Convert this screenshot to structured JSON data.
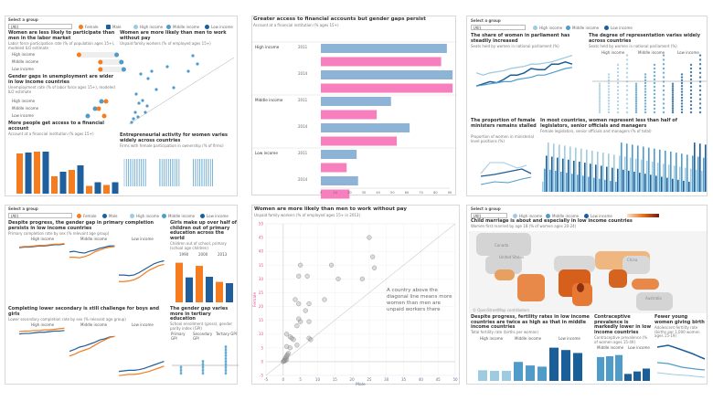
{
  "common": {
    "select_label": "Select a group",
    "select_value": "(All)"
  },
  "legend": {
    "female": "Female",
    "male": "Male",
    "high": "High income",
    "middle": "Middle income",
    "low": "Low income"
  },
  "colors": {
    "female": "#f57c1f",
    "male": "#1f5f9e",
    "high": "#9fcbe2",
    "middle": "#4f9ccb",
    "low": "#1b5f9a",
    "blue_bar": "#8db4d6",
    "pink_bar": "#f77fbd"
  },
  "panel1": {
    "t1": "Women are less likely to participate than men in the labor market",
    "s1": "Labor force participation rate (% of population ages 15+), modeled ILO estimate",
    "rows": [
      "High income",
      "Middle income",
      "Low income"
    ],
    "t2": "Gender gaps in unemployment are wider in low income countries",
    "s2": "Unemployment rate (% of labor force ages 15+), modeled ILO estimate",
    "t3": "More people get access to a financial account",
    "s3": "Account at a financial institution (% ages 15+)",
    "t4": "Women are more likely than men to work without pay",
    "s4": "Unpaid family workers (% of employed ages 15+)",
    "t5": "Entrepreneurial activity for women varies widely across countries",
    "s5": "Firms with female participation in ownership (% of firms)",
    "year": "2014",
    "account_bars": [
      88,
      90,
      92,
      92,
      38,
      48,
      52,
      62,
      17,
      25,
      19,
      25
    ]
  },
  "panel2": {
    "title": "Greater access to financial accounts but gender gaps persist",
    "subtitle": "Account at a financial institution (% ages 15+)"
  },
  "panel3": {
    "t1": "The share of women in parliament has steadily increased",
    "s1": "Seats held by women in national parliament (%)",
    "t2": "The degree of representation varies widely across countries",
    "s2": "Seats held by women in national parliament (%)",
    "t3": "The proportion of female ministers remains stalled",
    "s3": "Proportion of women in ministerial level positions (%)",
    "t4": "In most countries, women represent less than half of legislators, senior officials and managers",
    "s4": "Female legislators, senior officials and managers (% of total)",
    "groups": [
      "High income",
      "Middle income",
      "Low income"
    ]
  },
  "panel4": {
    "t1": "Despite progress, the gender gap in primary completion persists in low income countries",
    "s1": "Primary completion rate by sex (% relevant age group)",
    "t2": "Completing lower secondary is still challenge for boys and girls",
    "s2": "Lower secondary completion rate by sex (% relevant age group)",
    "t3": "Girls make up over half of children out of primary education across the world",
    "s3": "Children out of school, primary (school age children)",
    "t4": "The gender gap varies more in tertiary education",
    "s4": "School enrollment (gross), gender parity index (GPI)",
    "groups": [
      "High income",
      "Middle income",
      "Low income"
    ],
    "years": [
      "1990",
      "2000",
      "2013"
    ],
    "gpi": [
      "Primary GPI",
      "Secondary GPI",
      "Tertiary GPI"
    ],
    "bars": [
      62,
      39,
      57,
      40,
      32,
      30
    ]
  },
  "panel5": {
    "title": "Women are more likely than men to work without pay",
    "subtitle": "Unpaid family workers (% of employed ages 15+ in 2013)",
    "note": "A country above the diagonal line means more women than men are unpaid workers there"
  },
  "panel6": {
    "t1": "Child marriage is about and especially in low income countries",
    "s1": "Women first married by age 18 (% of women ages 20-24)",
    "t2": "Despite progress, fertility rates in low income countries are twice as high as that in middle income countries",
    "s2": "Total fertility rate (births per woman)",
    "t3": "Contraceptive prevalence is markedly lower in low income countries",
    "s3": "Contraceptive prevalence (% of women ages 15-49)",
    "t4": "Fewer young women giving birth",
    "s4": "Adolescent fertility rate (births per 1,000 women ages 15-19)",
    "groups": [
      "High income",
      "Middle income",
      "Low income"
    ],
    "map_labels": [
      "Canada",
      "United States",
      "China",
      "Australia"
    ],
    "credit": "© OpenStreetMap contributors",
    "fertility": [
      1.8,
      1.7,
      1.7,
      3.2,
      2.6,
      2.4,
      5.6,
      5.2,
      4.7
    ],
    "contraception": [
      58,
      60,
      63,
      17,
      23,
      30
    ]
  },
  "chart_data": [
    {
      "type": "bar",
      "orientation": "horizontal",
      "title": "Greater access to financial accounts but gender gaps persist",
      "subtitle": "Account at a financial institution (% ages 15+)",
      "categories": [
        "High income 2011",
        "High income 2014",
        "Middle income 2011",
        "Middle income 2014",
        "Low income 2011",
        "Low income 2014"
      ],
      "group_labels": [
        "High income",
        "Middle income",
        "Low income"
      ],
      "year_labels": [
        "2011",
        "2014",
        "2011",
        "2014",
        "2011",
        "2014"
      ],
      "series": [
        {
          "color": "#8db4d6",
          "values": [
            88,
            92,
            49,
            62,
            25,
            26
          ]
        },
        {
          "color": "#f77fbd",
          "values": [
            84,
            92,
            39,
            53,
            18,
            20
          ]
        }
      ],
      "xlim": [
        0,
        90
      ],
      "xticks": [
        "0",
        "10",
        "20",
        "30",
        "40",
        "50",
        "60",
        "70",
        "80",
        "90"
      ]
    },
    {
      "type": "scatter",
      "title": "Women are more likely than men to work without pay",
      "subtitle": "Unpaid family workers (% of employed ages 15+ in 2013)",
      "xlabel": "Male",
      "ylabel": "Female",
      "xlim": [
        -5,
        50
      ],
      "ylim": [
        -5,
        50
      ],
      "xticks": [
        "-5",
        "0",
        "5",
        "10",
        "15",
        "20",
        "25",
        "30",
        "35",
        "40",
        "45",
        "50"
      ],
      "yticks": [
        "-5",
        "0",
        "5",
        "10",
        "15",
        "20",
        "25",
        "30",
        "35",
        "40",
        "45",
        "50"
      ],
      "points": [
        [
          25,
          45
        ],
        [
          26,
          38
        ],
        [
          26.5,
          34
        ],
        [
          14,
          35
        ],
        [
          16,
          30
        ],
        [
          23,
          30
        ],
        [
          5,
          35
        ],
        [
          4.5,
          31
        ],
        [
          7,
          31
        ],
        [
          3.5,
          22.5
        ],
        [
          12,
          22.5
        ],
        [
          4.5,
          21
        ],
        [
          7.5,
          21
        ],
        [
          6.5,
          18.5
        ],
        [
          4.5,
          15.5
        ],
        [
          5,
          14.5
        ],
        [
          7.5,
          14.5
        ],
        [
          4,
          13
        ],
        [
          1,
          10
        ],
        [
          2,
          9
        ],
        [
          2.5,
          8.5
        ],
        [
          3,
          8
        ],
        [
          7.5,
          8.5
        ],
        [
          8,
          8
        ],
        [
          4,
          6
        ],
        [
          1,
          5.5
        ],
        [
          2,
          5
        ],
        [
          1.5,
          3
        ],
        [
          1.2,
          2.5
        ],
        [
          1,
          2
        ],
        [
          0.8,
          1.5
        ],
        [
          0.5,
          1
        ],
        [
          0.3,
          0.5
        ],
        [
          0.6,
          0.3
        ],
        [
          1,
          0.8
        ],
        [
          0,
          0
        ],
        [
          0.2,
          0.2
        ]
      ]
    }
  ]
}
